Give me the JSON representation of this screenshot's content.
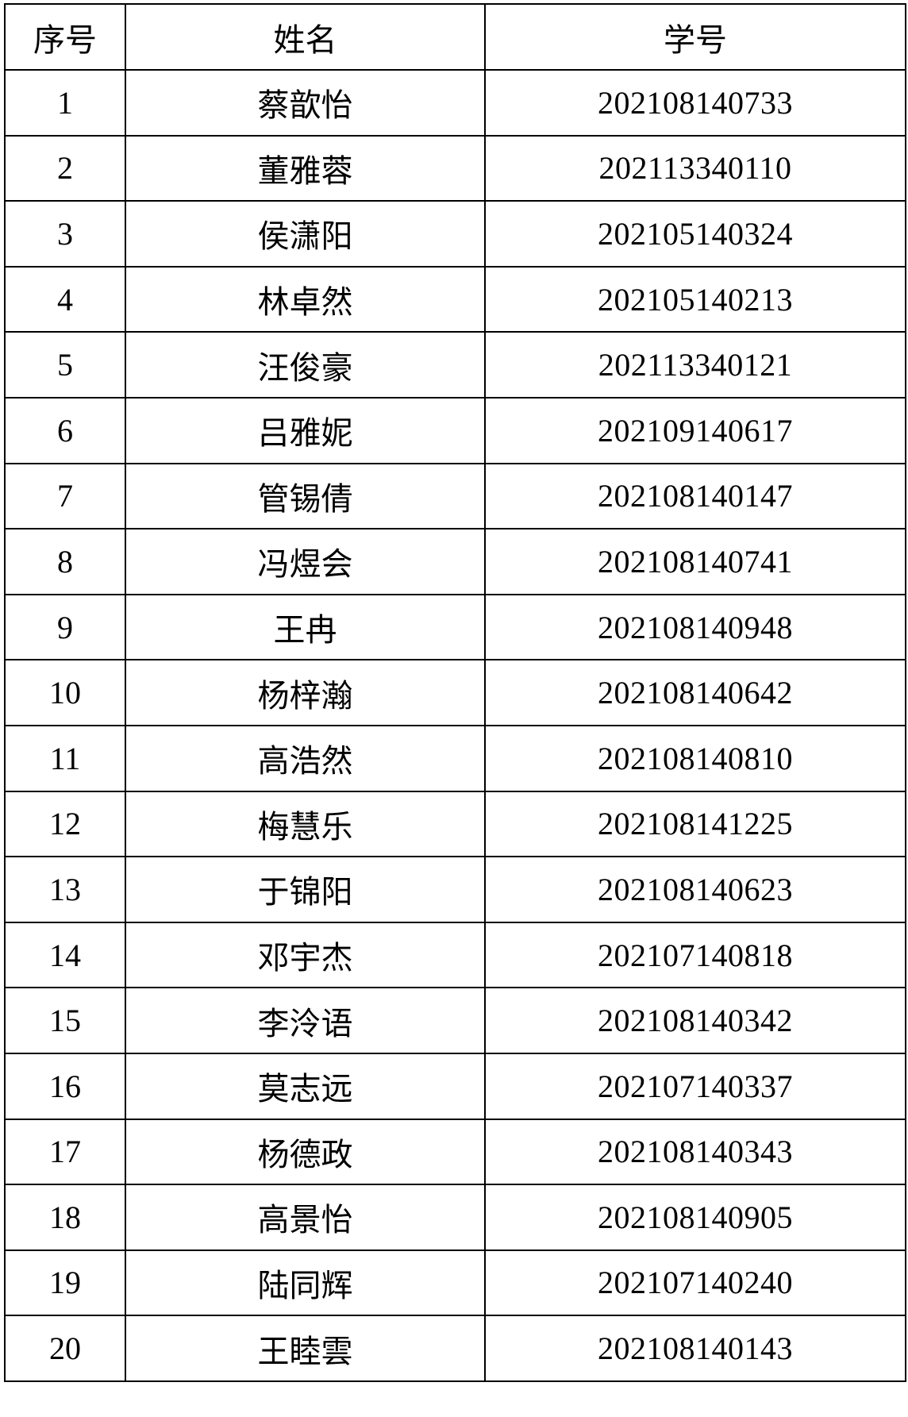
{
  "headers": [
    "序号",
    "姓名",
    "学号"
  ],
  "rows": [
    {
      "no": "1",
      "name": "蔡歆怡",
      "id": "202108140733"
    },
    {
      "no": "2",
      "name": "董雅蓉",
      "id": "202113340110"
    },
    {
      "no": "3",
      "name": "侯潇阳",
      "id": "202105140324"
    },
    {
      "no": "4",
      "name": "林卓然",
      "id": "202105140213"
    },
    {
      "no": "5",
      "name": "汪俊豪",
      "id": "202113340121"
    },
    {
      "no": "6",
      "name": "吕雅妮",
      "id": "202109140617"
    },
    {
      "no": "7",
      "name": "管锡倩",
      "id": "202108140147"
    },
    {
      "no": "8",
      "name": "冯煜会",
      "id": "202108140741"
    },
    {
      "no": "9",
      "name": "王冉",
      "id": "202108140948"
    },
    {
      "no": "10",
      "name": "杨梓瀚",
      "id": "202108140642"
    },
    {
      "no": "11",
      "name": "高浩然",
      "id": "202108140810"
    },
    {
      "no": "12",
      "name": "梅慧乐",
      "id": "202108141225"
    },
    {
      "no": "13",
      "name": "于锦阳",
      "id": "202108140623"
    },
    {
      "no": "14",
      "name": "邓宇杰",
      "id": "202107140818"
    },
    {
      "no": "15",
      "name": "李泠语",
      "id": "202108140342"
    },
    {
      "no": "16",
      "name": "莫志远",
      "id": "202107140337"
    },
    {
      "no": "17",
      "name": "杨德政",
      "id": "202108140343"
    },
    {
      "no": "18",
      "name": "高景怡",
      "id": "202108140905"
    },
    {
      "no": "19",
      "name": "陆同辉",
      "id": "202107140240"
    },
    {
      "no": "20",
      "name": "王睦雲",
      "id": "202108140143"
    }
  ]
}
